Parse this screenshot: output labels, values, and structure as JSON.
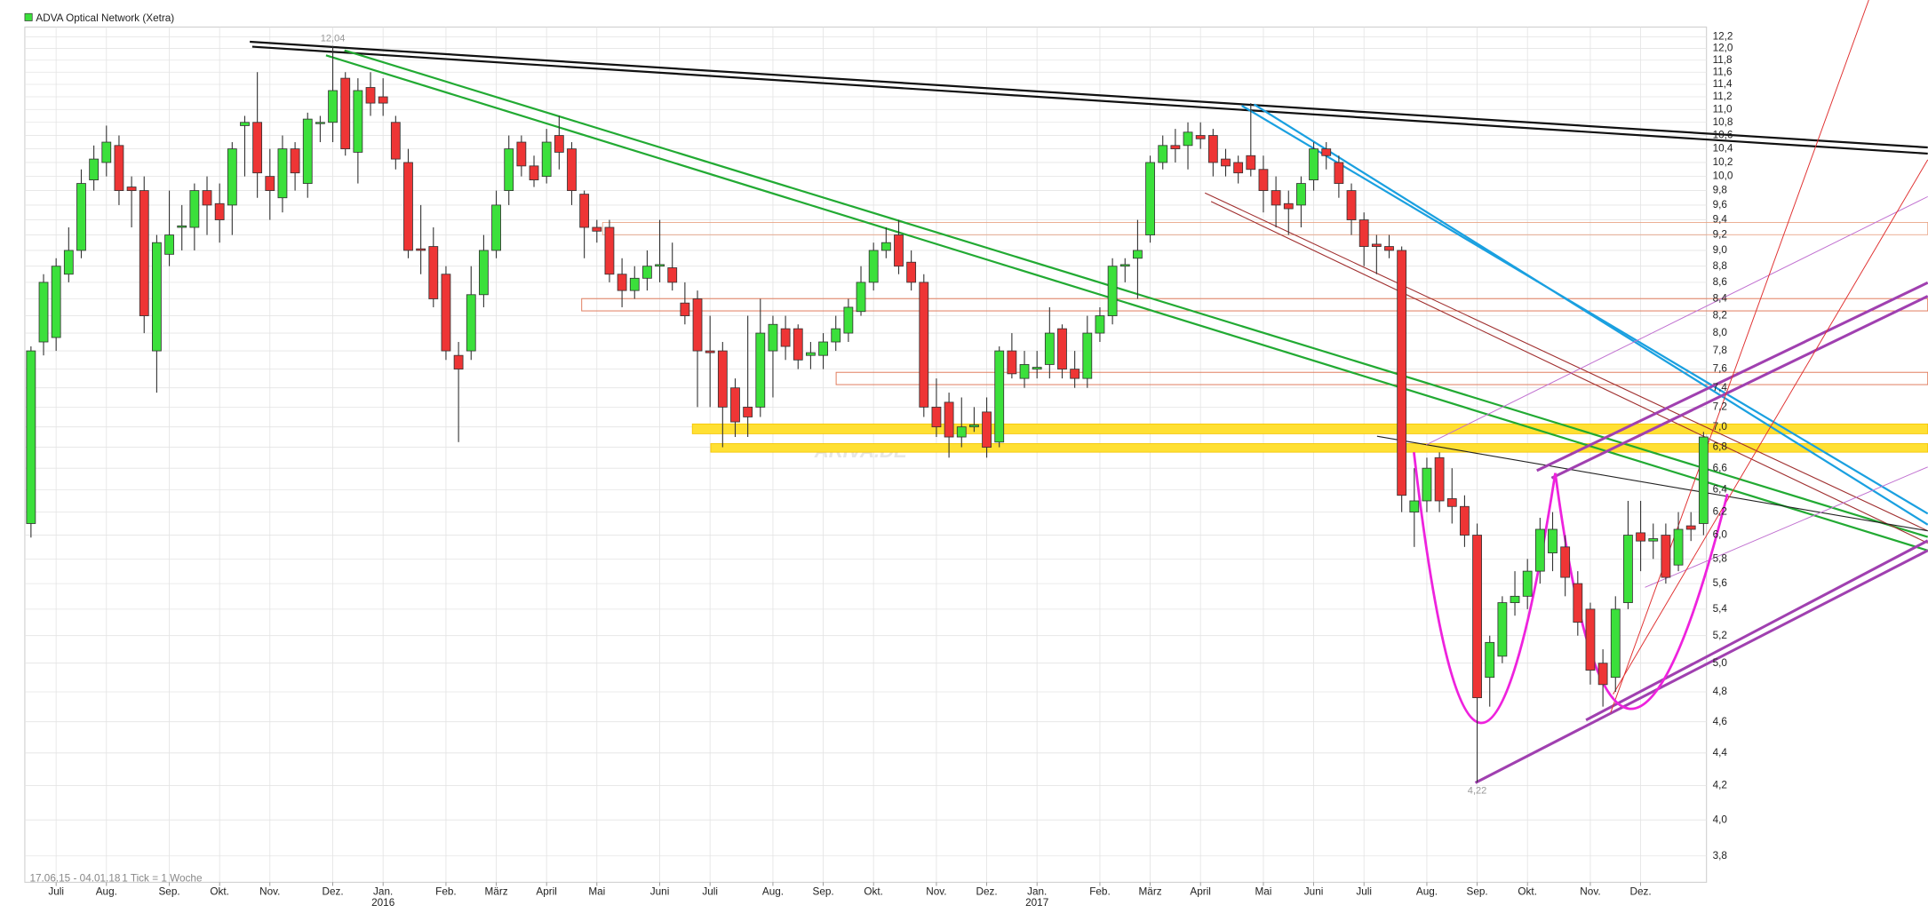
{
  "chart_data": {
    "type": "candlestick",
    "title": "ADVA Optical Network (Xetra)",
    "date_range": "17.06.15 - 04.01.18",
    "tick_note": "1 Tick = 1 Woche",
    "watermark": "ARIVA.DE",
    "log_scale": true,
    "grid": true,
    "up_color": "#3be03b",
    "down_color": "#ee3535",
    "ylim": [
      3.66,
      12.37
    ],
    "yticks": [
      {
        "value": 3.8,
        "label": "3,8"
      },
      {
        "value": 4.0,
        "label": "4,0"
      },
      {
        "value": 4.2,
        "label": "4,2"
      },
      {
        "value": 4.4,
        "label": "4,4"
      },
      {
        "value": 4.6,
        "label": "4,6"
      },
      {
        "value": 4.8,
        "label": "4,8"
      },
      {
        "value": 5.0,
        "label": "5,0"
      },
      {
        "value": 5.2,
        "label": "5,2"
      },
      {
        "value": 5.4,
        "label": "5,4"
      },
      {
        "value": 5.6,
        "label": "5,6"
      },
      {
        "value": 5.8,
        "label": "5,8"
      },
      {
        "value": 6.0,
        "label": "6,0"
      },
      {
        "value": 6.2,
        "label": "6,2"
      },
      {
        "value": 6.4,
        "label": "6,4"
      },
      {
        "value": 6.6,
        "label": "6,6"
      },
      {
        "value": 6.8,
        "label": "6,8"
      },
      {
        "value": 7.0,
        "label": "7,0"
      },
      {
        "value": 7.2,
        "label": "7,2"
      },
      {
        "value": 7.4,
        "label": "7,4"
      },
      {
        "value": 7.6,
        "label": "7,6"
      },
      {
        "value": 7.8,
        "label": "7,8"
      },
      {
        "value": 8.0,
        "label": "8,0"
      },
      {
        "value": 8.2,
        "label": "8,2"
      },
      {
        "value": 8.4,
        "label": "8,4"
      },
      {
        "value": 8.6,
        "label": "8,6"
      },
      {
        "value": 8.8,
        "label": "8,8"
      },
      {
        "value": 9.0,
        "label": "9,0"
      },
      {
        "value": 9.2,
        "label": "9,2"
      },
      {
        "value": 9.4,
        "label": "9,4"
      },
      {
        "value": 9.6,
        "label": "9,6"
      },
      {
        "value": 9.8,
        "label": "9,8"
      },
      {
        "value": 10.0,
        "label": "10,0"
      },
      {
        "value": 10.2,
        "label": "10,2"
      },
      {
        "value": 10.4,
        "label": "10,4"
      },
      {
        "value": 10.6,
        "label": "10,6"
      },
      {
        "value": 10.8,
        "label": "10,8"
      },
      {
        "value": 11.0,
        "label": "11,0"
      },
      {
        "value": 11.2,
        "label": "11,2"
      },
      {
        "value": 11.4,
        "label": "11,4"
      },
      {
        "value": 11.6,
        "label": "11,6"
      },
      {
        "value": 11.8,
        "label": "11,8"
      },
      {
        "value": 12.0,
        "label": "12,0"
      },
      {
        "value": 12.2,
        "label": "12,2"
      }
    ],
    "categories": [
      null,
      null,
      "Juli",
      null,
      null,
      null,
      "Aug.",
      null,
      null,
      null,
      null,
      "Sep.",
      null,
      null,
      null,
      "Okt.",
      null,
      null,
      null,
      "Nov.",
      null,
      null,
      null,
      null,
      "Dez.",
      null,
      null,
      null,
      "Jan.",
      null,
      null,
      null,
      null,
      "Feb.",
      null,
      null,
      null,
      "März",
      null,
      null,
      null,
      "April",
      null,
      null,
      null,
      "Mai",
      null,
      null,
      null,
      null,
      "Juni",
      null,
      null,
      null,
      "Juli",
      null,
      null,
      null,
      null,
      "Aug.",
      null,
      null,
      null,
      "Sep.",
      null,
      null,
      null,
      "Okt.",
      null,
      null,
      null,
      null,
      "Nov.",
      null,
      null,
      null,
      "Dez.",
      null,
      null,
      null,
      "Jan.",
      null,
      null,
      null,
      null,
      "Feb.",
      null,
      null,
      null,
      "März",
      null,
      null,
      null,
      "April",
      null,
      null,
      null,
      null,
      "Mai",
      null,
      null,
      null,
      "Juni",
      null,
      null,
      null,
      "Juli",
      null,
      null,
      null,
      null,
      "Aug.",
      null,
      null,
      null,
      "Sep.",
      null,
      null,
      null,
      "Okt.",
      null,
      null,
      null,
      null,
      "Nov.",
      null,
      null,
      null,
      "Dez.",
      null,
      null,
      null,
      null,
      null
    ],
    "categories_year": [
      null,
      null,
      null,
      null,
      null,
      null,
      null,
      null,
      null,
      null,
      null,
      null,
      null,
      null,
      null,
      null,
      null,
      null,
      null,
      null,
      null,
      null,
      null,
      null,
      null,
      null,
      null,
      null,
      "2016",
      null,
      null,
      null,
      null,
      null,
      null,
      null,
      null,
      null,
      null,
      null,
      null,
      null,
      null,
      null,
      null,
      null,
      null,
      null,
      null,
      null,
      null,
      null,
      null,
      null,
      null,
      null,
      null,
      null,
      null,
      null,
      null,
      null,
      null,
      null,
      null,
      null,
      null,
      null,
      null,
      null,
      null,
      null,
      null,
      null,
      null,
      null,
      null,
      null,
      null,
      null,
      "2017",
      null,
      null,
      null,
      null,
      null,
      null,
      null,
      null,
      null,
      null,
      null,
      null,
      null,
      null,
      null,
      null,
      null,
      null,
      null,
      null,
      null,
      null,
      null,
      null,
      null,
      null,
      null,
      null,
      null,
      null,
      null,
      null,
      null,
      null,
      null,
      null,
      null,
      null,
      null,
      null,
      null,
      null,
      null,
      null,
      null,
      null,
      null,
      null,
      null,
      null,
      null,
      null,
      null
    ],
    "open": [
      6.1,
      7.9,
      7.95,
      8.7,
      9.0,
      9.95,
      10.2,
      10.45,
      9.85,
      9.8,
      7.8,
      8.95,
      9.3,
      9.3,
      9.8,
      9.62,
      9.6,
      10.75,
      10.8,
      10.0,
      9.7,
      10.4,
      9.9,
      10.78,
      10.8,
      11.5,
      10.35,
      11.35,
      11.2,
      10.8,
      10.2,
      9.02,
      9.05,
      8.7,
      7.75,
      7.8,
      8.45,
      9.0,
      9.8,
      10.5,
      10.15,
      10.0,
      10.6,
      10.4,
      9.75,
      9.3,
      9.3,
      8.7,
      8.5,
      8.65,
      8.8,
      8.78,
      8.35,
      8.4,
      7.8,
      7.8,
      7.4,
      7.2,
      7.2,
      7.8,
      8.05,
      8.05,
      7.75,
      7.75,
      7.9,
      8.0,
      8.25,
      8.6,
      9.0,
      9.2,
      8.85,
      8.6,
      7.2,
      7.25,
      6.9,
      7.0,
      7.15,
      6.85,
      7.8,
      7.5,
      7.6,
      7.65,
      8.05,
      7.6,
      7.5,
      8.0,
      8.2,
      8.8,
      8.9,
      9.2,
      10.2,
      10.45,
      10.45,
      10.6,
      10.6,
      10.25,
      10.2,
      10.3,
      10.1,
      9.8,
      9.62,
      9.6,
      9.95,
      10.4,
      10.2,
      9.8,
      9.4,
      9.08,
      9.05,
      9.0,
      6.2,
      6.3,
      6.7,
      6.32,
      6.25,
      6.0,
      4.9,
      5.05,
      5.45,
      5.5,
      5.7,
      5.85,
      5.9,
      5.6,
      5.4,
      5.0,
      4.9,
      5.45,
      6.02,
      5.95,
      6.0,
      5.75,
      6.08,
      6.1
    ],
    "high": [
      7.85,
      8.7,
      8.9,
      9.3,
      10.1,
      10.45,
      10.75,
      10.6,
      10.0,
      10.0,
      9.2,
      9.8,
      9.6,
      9.9,
      10.0,
      9.9,
      10.5,
      10.9,
      11.6,
      10.4,
      10.6,
      10.5,
      10.95,
      10.9,
      12.04,
      11.6,
      11.5,
      11.6,
      11.5,
      10.9,
      10.4,
      9.6,
      9.3,
      8.8,
      7.9,
      8.8,
      9.2,
      9.8,
      10.6,
      10.6,
      10.3,
      10.7,
      10.9,
      10.5,
      9.8,
      9.4,
      9.4,
      8.9,
      8.8,
      9.0,
      9.4,
      9.1,
      8.6,
      8.5,
      8.2,
      7.9,
      7.5,
      8.2,
      8.4,
      8.2,
      8.2,
      8.1,
      7.9,
      8.0,
      8.2,
      8.4,
      8.8,
      9.1,
      9.3,
      9.4,
      9.0,
      8.7,
      7.5,
      7.35,
      7.3,
      7.2,
      7.3,
      7.85,
      8.0,
      7.8,
      7.8,
      8.3,
      8.1,
      7.8,
      8.2,
      8.3,
      8.9,
      8.9,
      9.4,
      10.3,
      10.6,
      10.7,
      10.8,
      10.8,
      10.7,
      10.4,
      10.3,
      11.1,
      10.3,
      10.0,
      9.8,
      10.0,
      10.5,
      10.5,
      10.3,
      9.9,
      9.5,
      9.2,
      9.2,
      9.05,
      6.6,
      6.7,
      6.75,
      6.6,
      6.35,
      6.1,
      5.2,
      5.5,
      5.7,
      5.8,
      6.15,
      6.2,
      6.0,
      5.7,
      5.45,
      5.1,
      5.5,
      6.3,
      6.3,
      6.1,
      6.1,
      6.2,
      6.2,
      6.95
    ],
    "low": [
      5.98,
      7.75,
      7.8,
      8.6,
      8.9,
      9.8,
      10.0,
      9.6,
      9.3,
      8.0,
      7.35,
      8.8,
      9.0,
      9.0,
      9.2,
      9.1,
      9.2,
      10.0,
      9.7,
      9.4,
      9.5,
      9.8,
      9.7,
      10.5,
      10.5,
      10.3,
      9.9,
      10.9,
      10.9,
      10.1,
      8.9,
      8.7,
      8.3,
      7.7,
      6.85,
      7.7,
      8.3,
      8.9,
      9.6,
      10.0,
      9.85,
      9.9,
      10.1,
      9.6,
      8.9,
      9.1,
      8.6,
      8.3,
      8.4,
      8.5,
      8.6,
      8.5,
      8.1,
      7.2,
      7.2,
      6.8,
      6.9,
      6.9,
      7.1,
      7.3,
      7.7,
      7.6,
      7.6,
      7.6,
      7.8,
      7.9,
      8.2,
      8.5,
      8.9,
      8.7,
      8.5,
      7.1,
      6.9,
      6.7,
      6.8,
      6.95,
      6.7,
      6.8,
      7.5,
      7.4,
      7.5,
      7.5,
      7.5,
      7.4,
      7.4,
      7.9,
      8.1,
      8.6,
      8.4,
      9.1,
      10.1,
      10.2,
      10.1,
      10.4,
      10.0,
      10.0,
      9.9,
      10.0,
      9.5,
      9.3,
      9.2,
      9.3,
      9.8,
      10.1,
      9.7,
      9.2,
      8.8,
      8.7,
      8.9,
      6.2,
      5.9,
      6.2,
      6.2,
      6.1,
      5.9,
      4.22,
      4.7,
      5.0,
      5.35,
      5.4,
      5.6,
      5.7,
      5.5,
      5.2,
      4.85,
      4.7,
      4.8,
      5.4,
      5.7,
      5.8,
      5.6,
      5.7,
      5.95,
      6.0
    ],
    "close": [
      7.8,
      8.6,
      8.8,
      9.0,
      9.9,
      10.25,
      10.5,
      9.8,
      9.8,
      8.2,
      9.1,
      9.2,
      9.32,
      9.8,
      9.6,
      9.4,
      10.4,
      10.8,
      10.05,
      9.8,
      10.4,
      10.05,
      10.85,
      10.8,
      11.3,
      10.4,
      11.3,
      11.1,
      11.1,
      10.25,
      9.0,
      9.0,
      8.4,
      7.8,
      7.6,
      8.45,
      9.0,
      9.6,
      10.4,
      10.15,
      9.95,
      10.5,
      10.35,
      9.8,
      9.3,
      9.25,
      8.7,
      8.5,
      8.65,
      8.8,
      8.82,
      8.6,
      8.2,
      7.8,
      7.78,
      7.2,
      7.05,
      7.1,
      8.0,
      8.1,
      7.85,
      7.7,
      7.78,
      7.9,
      8.05,
      8.3,
      8.6,
      9.0,
      9.1,
      8.8,
      8.6,
      7.2,
      7.0,
      6.9,
      7.0,
      7.02,
      6.8,
      7.8,
      7.55,
      7.65,
      7.62,
      8.0,
      7.6,
      7.5,
      8.0,
      8.2,
      8.8,
      8.82,
      9.0,
      10.2,
      10.45,
      10.4,
      10.65,
      10.55,
      10.2,
      10.15,
      10.05,
      10.1,
      9.8,
      9.6,
      9.55,
      9.9,
      10.4,
      10.3,
      9.9,
      9.4,
      9.05,
      9.05,
      9.0,
      6.35,
      6.3,
      6.6,
      6.3,
      6.25,
      6.0,
      4.76,
      5.15,
      5.45,
      5.5,
      5.7,
      6.05,
      6.05,
      5.65,
      5.3,
      4.95,
      4.85,
      5.4,
      6.0,
      5.95,
      5.97,
      5.65,
      6.05,
      6.05,
      6.9
    ],
    "annotations": [
      {
        "label": "12,04",
        "value": 12.04
      },
      {
        "label": "4,22",
        "value": 4.22
      }
    ]
  }
}
